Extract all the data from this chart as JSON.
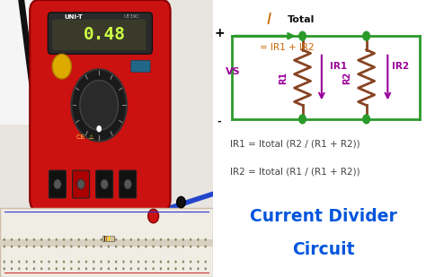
{
  "bg_color": "#ffffff",
  "green_color": "#2a9a2a",
  "orange_color": "#cc6600",
  "purple_color": "#990099",
  "brown_color": "#884422",
  "blue_title_color": "#0055dd",
  "formula_color": "#444444",
  "title_text1": "Current Divider",
  "title_text2": "Circuit",
  "eq1": "= IR1 + IR2",
  "vs_label": "VS",
  "formula1": "IR1 = Itotal (R2 / (R1 + R2))",
  "formula2": "IR2 = Itotal (R1 / (R1 + R2))",
  "plus_label": "+",
  "minus_label": "-",
  "photo_bg": "#dcd8d0",
  "meter_red": "#cc1111",
  "meter_dark": "#111111",
  "breadboard_color": "#f5f0e8"
}
